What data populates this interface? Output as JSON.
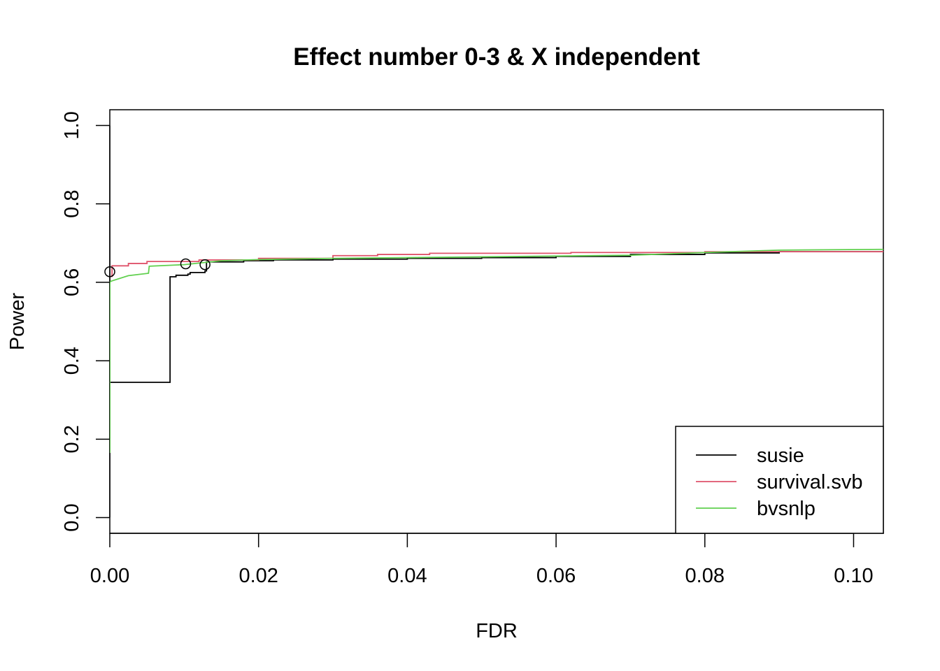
{
  "chart_data": {
    "type": "line",
    "title": "Effect number 0-3 & X independent",
    "xlabel": "FDR",
    "ylabel": "Power",
    "xlim": [
      0.0,
      0.104
    ],
    "ylim": [
      -0.04,
      1.04
    ],
    "x_ticks": [
      0.0,
      0.02,
      0.04,
      0.06,
      0.08,
      0.1
    ],
    "x_tick_labels": [
      "0.00",
      "0.02",
      "0.04",
      "0.06",
      "0.08",
      "0.10"
    ],
    "y_ticks": [
      0.0,
      0.2,
      0.4,
      0.6,
      0.8,
      1.0
    ],
    "y_tick_labels": [
      "0.0",
      "0.2",
      "0.4",
      "0.6",
      "0.8",
      "1.0"
    ],
    "grid": false,
    "legend_position": "bottom-right",
    "series": [
      {
        "name": "susie",
        "color": "#000000",
        "step": true,
        "x": [
          0.0,
          0.0081,
          0.0089,
          0.0105,
          0.0108,
          0.0128,
          0.013,
          0.018,
          0.022,
          0.03,
          0.04,
          0.05,
          0.06,
          0.07,
          0.08,
          0.09,
          0.104
        ],
        "y": [
          0.345,
          0.614,
          0.618,
          0.621,
          0.625,
          0.629,
          0.652,
          0.655,
          0.657,
          0.659,
          0.661,
          0.663,
          0.666,
          0.671,
          0.675,
          0.678,
          0.68
        ],
        "markers": [
          {
            "x": 0.0128,
            "y": 0.645
          }
        ]
      },
      {
        "name": "survival.svb",
        "color": "#df536b",
        "step": true,
        "x": [
          0.0,
          0.0003,
          0.0025,
          0.005,
          0.012,
          0.02,
          0.03,
          0.036,
          0.043,
          0.062,
          0.08,
          0.104
        ],
        "y": [
          0.615,
          0.642,
          0.648,
          0.653,
          0.657,
          0.661,
          0.668,
          0.671,
          0.674,
          0.676,
          0.678,
          0.68
        ],
        "markers": [
          {
            "x": 0.0,
            "y": 0.627
          }
        ]
      },
      {
        "name": "bvsnlp",
        "color": "#61d04f",
        "step": false,
        "x": [
          0.0,
          0.0,
          0.0002,
          0.0025,
          0.0052,
          0.0053,
          0.01,
          0.015,
          0.02,
          0.03,
          0.04,
          0.05,
          0.06,
          0.07,
          0.08,
          0.09,
          0.104
        ],
        "y": [
          0.165,
          0.6,
          0.603,
          0.617,
          0.623,
          0.641,
          0.645,
          0.655,
          0.658,
          0.661,
          0.663,
          0.665,
          0.667,
          0.669,
          0.676,
          0.682,
          0.684
        ],
        "markers": [
          {
            "x": 0.0102,
            "y": 0.647
          }
        ]
      }
    ]
  }
}
